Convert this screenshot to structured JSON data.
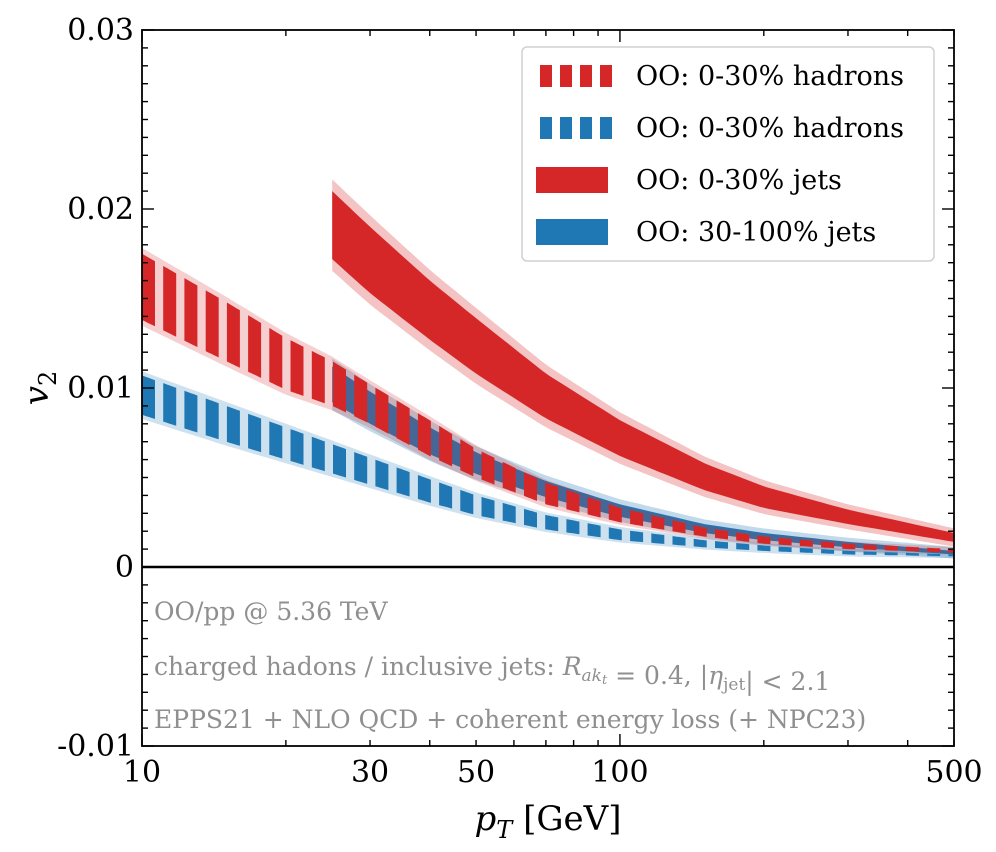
{
  "chart_data": {
    "type": "area",
    "xlabel": "p_T [GeV]",
    "ylabel": "v_2",
    "xscale": "log",
    "xlim": [
      10,
      500
    ],
    "ylim": [
      -0.01,
      0.03
    ],
    "xticks": [
      10,
      30,
      50,
      100,
      500
    ],
    "xtick_labels": [
      "10",
      "30",
      "50",
      "100",
      "500"
    ],
    "yticks": [
      -0.01,
      0,
      0.01,
      0.02,
      0.03
    ],
    "ytick_labels": [
      "-0.01",
      "0",
      "0.01",
      "0.02",
      "0.03"
    ],
    "grid": false,
    "legend_position": "top-right",
    "zero_line": true,
    "series": [
      {
        "name": "OO: 0-30% hadrons",
        "style": "dashed-band",
        "color": "#d62728",
        "x": [
          10,
          15,
          20,
          25,
          30,
          40,
          50,
          70,
          100,
          150,
          200,
          300,
          500
        ],
        "lower": [
          0.0138,
          0.0115,
          0.0099,
          0.009,
          0.008,
          0.0062,
          0.005,
          0.0035,
          0.0025,
          0.0017,
          0.0013,
          0.001,
          0.0008
        ],
        "upper": [
          0.0175,
          0.0148,
          0.0128,
          0.0115,
          0.0102,
          0.0082,
          0.0066,
          0.0047,
          0.0033,
          0.0022,
          0.0017,
          0.0013,
          0.001
        ]
      },
      {
        "name": "OO: 0-30% hadrons",
        "style": "dashed-band",
        "color": "#1f77b4",
        "x": [
          10,
          15,
          20,
          30,
          40,
          50,
          70,
          100,
          150,
          200,
          300,
          500
        ],
        "lower": [
          0.0085,
          0.007,
          0.006,
          0.0046,
          0.0036,
          0.0029,
          0.0021,
          0.0015,
          0.0011,
          0.0009,
          0.0007,
          0.0006
        ],
        "upper": [
          0.0107,
          0.009,
          0.0078,
          0.0061,
          0.0049,
          0.004,
          0.0029,
          0.0021,
          0.0015,
          0.0012,
          0.0009,
          0.0007
        ]
      },
      {
        "name": "OO: 0-30% jets",
        "style": "solid-band",
        "color": "#d62728",
        "x": [
          25,
          30,
          40,
          50,
          70,
          100,
          150,
          200,
          300,
          500
        ],
        "lower": [
          0.0172,
          0.0153,
          0.0127,
          0.0108,
          0.0083,
          0.0062,
          0.0043,
          0.0033,
          0.0024,
          0.0014
        ],
        "upper": [
          0.021,
          0.019,
          0.016,
          0.0139,
          0.0108,
          0.0082,
          0.0058,
          0.0045,
          0.0032,
          0.0019
        ]
      },
      {
        "name": "OO: 30-100% jets",
        "style": "solid-band",
        "color": "#1f77b4",
        "x": [
          25,
          30,
          40,
          50,
          70,
          100,
          150,
          200,
          300,
          500
        ],
        "lower": [
          0.0092,
          0.008,
          0.0063,
          0.0052,
          0.0039,
          0.0028,
          0.0019,
          0.0015,
          0.0011,
          0.0007
        ],
        "upper": [
          0.0112,
          0.0098,
          0.0078,
          0.0064,
          0.0048,
          0.0035,
          0.0024,
          0.0019,
          0.0014,
          0.0009
        ]
      }
    ],
    "annotations": [
      "OO/pp @ 5.36 TeV",
      "charged hadons / inclusive jets: R_{ak_t} = 0.4, |η_jet| < 2.1",
      "EPPS21 + NLO QCD + coherent energy loss (+ NPC23)"
    ]
  },
  "legend": [
    {
      "label": "OO: 0-30% hadrons",
      "color": "#d62728",
      "style": "dashed"
    },
    {
      "label": "OO: 0-30% hadrons",
      "color": "#1f77b4",
      "style": "dashed"
    },
    {
      "label": "OO: 0-30% jets",
      "color": "#d62728",
      "style": "solid"
    },
    {
      "label": "OO: 30-100% jets",
      "color": "#1f77b4",
      "style": "solid"
    }
  ]
}
